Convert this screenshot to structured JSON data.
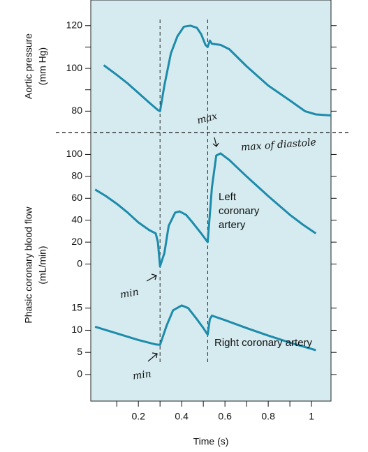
{
  "chart_data": [
    {
      "type": "line",
      "ylabel": [
        "Aortic pressure",
        "(mm Hg)"
      ],
      "xlim": [
        -0.02,
        1.09
      ],
      "ylim": [
        70,
        132
      ],
      "yticks": [
        80,
        100,
        120
      ],
      "yminor_ticks": [
        90,
        110
      ],
      "vlines": [
        0.3,
        0.52
      ],
      "annotations": [
        "max",
        "max of diastole"
      ],
      "x": [
        0.04,
        0.1,
        0.15,
        0.2,
        0.25,
        0.29,
        0.3,
        0.32,
        0.35,
        0.38,
        0.41,
        0.44,
        0.47,
        0.49,
        0.51,
        0.52,
        0.53,
        0.54,
        0.58,
        0.62,
        0.7,
        0.8,
        0.9,
        0.97,
        1.02,
        1.09
      ],
      "series": [
        {
          "name": "Aortic pressure",
          "color": "#1d8bab",
          "values": [
            101.5,
            97,
            93,
            88.5,
            84,
            80.5,
            80,
            92,
            107,
            115,
            119.5,
            120,
            119,
            116,
            111,
            110,
            113,
            111.5,
            111,
            109,
            101,
            92,
            85,
            80,
            78.5,
            78
          ]
        }
      ]
    },
    {
      "type": "line",
      "ylabel": [
        "Phasic coronary blood flow",
        "(mL/min)"
      ],
      "xlim": [
        -0.02,
        1.09
      ],
      "ylim": [
        -20,
        120
      ],
      "yticks": [
        0,
        20,
        40,
        60,
        80,
        100
      ],
      "annotations": [
        "Left coronary artery",
        "min"
      ],
      "x": [
        0,
        0.05,
        0.1,
        0.15,
        0.2,
        0.25,
        0.28,
        0.29,
        0.3,
        0.32,
        0.34,
        0.37,
        0.39,
        0.42,
        0.45,
        0.49,
        0.52,
        0.54,
        0.56,
        0.58,
        0.62,
        0.7,
        0.8,
        0.9,
        0.96,
        1.02
      ],
      "series": [
        {
          "name": "Left coronary artery",
          "color": "#1d8bab",
          "values": [
            68,
            62,
            55,
            47,
            38,
            31,
            28,
            20,
            -2,
            10,
            35,
            47,
            48,
            45,
            38,
            28,
            20,
            70,
            99,
            101,
            95,
            80,
            62,
            45,
            36,
            28
          ]
        }
      ]
    },
    {
      "type": "line",
      "xlabel": "Time (s)",
      "xlim": [
        -0.02,
        1.09
      ],
      "ylim": [
        -6,
        20
      ],
      "yticks": [
        0,
        5,
        10,
        15
      ],
      "xticks": [
        0.2,
        0.4,
        0.6,
        0.8,
        1
      ],
      "xminor_ticks": [
        0.1,
        0.3,
        0.5,
        0.7,
        0.9
      ],
      "annotations": [
        "Right coronary artery",
        "min"
      ],
      "x": [
        0,
        0.1,
        0.2,
        0.28,
        0.3,
        0.33,
        0.36,
        0.4,
        0.43,
        0.47,
        0.5,
        0.52,
        0.53,
        0.54,
        0.6,
        0.7,
        0.8,
        0.9,
        1.02
      ],
      "series": [
        {
          "name": "Right coronary artery",
          "color": "#1d8bab",
          "values": [
            10.8,
            9.3,
            7.8,
            6.8,
            6.7,
            11,
            14.5,
            15.6,
            15,
            12.5,
            10.5,
            9,
            12.5,
            13.3,
            12.3,
            10.5,
            8.8,
            7.2,
            5.5
          ]
        }
      ]
    }
  ]
}
